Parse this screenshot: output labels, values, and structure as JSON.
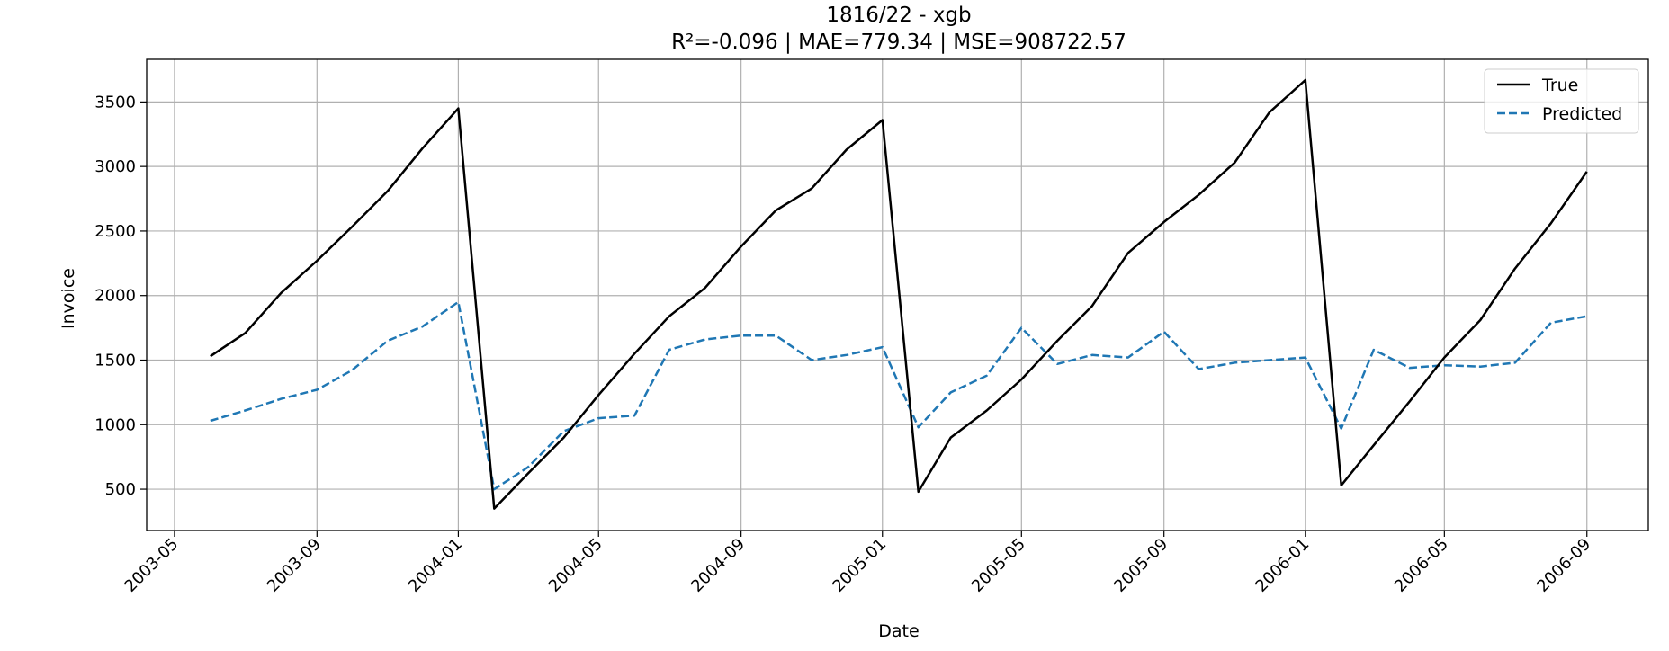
{
  "chart_data": {
    "type": "line",
    "title": "1816/22 - xgb",
    "subtitle": "R²=-0.096 | MAE=779.34 | MSE=908722.57",
    "xlabel": "Date",
    "ylabel": "Invoice",
    "grid": true,
    "legend_position": "top-right",
    "x_ticks": [
      "2003-05",
      "2003-09",
      "2004-01",
      "2004-05",
      "2004-09",
      "2005-01",
      "2005-05",
      "2005-09",
      "2006-01",
      "2006-05",
      "2006-09"
    ],
    "y_ticks": [
      500,
      1000,
      1500,
      2000,
      2500,
      3000,
      3500
    ],
    "xlim": [
      "2003-04-07",
      "2006-10-24"
    ],
    "ylim": [
      180,
      3830
    ],
    "x": [
      "2003-06-01",
      "2003-07-01",
      "2003-08-01",
      "2003-09-01",
      "2003-10-01",
      "2003-11-01",
      "2003-12-01",
      "2004-01-01",
      "2004-02-01",
      "2004-03-01",
      "2004-04-01",
      "2004-05-01",
      "2004-06-01",
      "2004-07-01",
      "2004-08-01",
      "2004-09-01",
      "2004-10-01",
      "2004-11-01",
      "2004-12-01",
      "2005-01-01",
      "2005-02-01",
      "2005-03-01",
      "2005-04-01",
      "2005-05-01",
      "2005-06-01",
      "2005-07-01",
      "2005-08-01",
      "2005-09-01",
      "2005-10-01",
      "2005-11-01",
      "2005-12-01",
      "2006-01-01",
      "2006-02-01",
      "2006-03-01",
      "2006-04-01",
      "2006-05-01",
      "2006-06-01",
      "2006-07-01",
      "2006-08-01",
      "2006-09-01"
    ],
    "series": [
      {
        "name": "True",
        "color": "#000000",
        "style": "solid",
        "values": [
          1530,
          1710,
          2020,
          2270,
          2530,
          2810,
          3140,
          3450,
          350,
          620,
          900,
          1230,
          1550,
          1840,
          2060,
          2380,
          2660,
          2830,
          3130,
          3360,
          480,
          900,
          1110,
          1350,
          1650,
          1920,
          2330,
          2570,
          2780,
          3030,
          3420,
          3670,
          530,
          840,
          1180,
          1520,
          1810,
          2210,
          2560,
          2960
        ]
      },
      {
        "name": "Predicted",
        "color": "#1f77b4",
        "style": "dashed",
        "values": [
          1030,
          1110,
          1200,
          1270,
          1420,
          1650,
          1760,
          1950,
          500,
          670,
          950,
          1050,
          1070,
          1580,
          1660,
          1690,
          1690,
          1500,
          1540,
          1600,
          980,
          1250,
          1380,
          1750,
          1470,
          1540,
          1520,
          1720,
          1430,
          1480,
          1500,
          1520,
          970,
          1580,
          1440,
          1460,
          1450,
          1480,
          1790,
          1840
        ]
      }
    ]
  }
}
